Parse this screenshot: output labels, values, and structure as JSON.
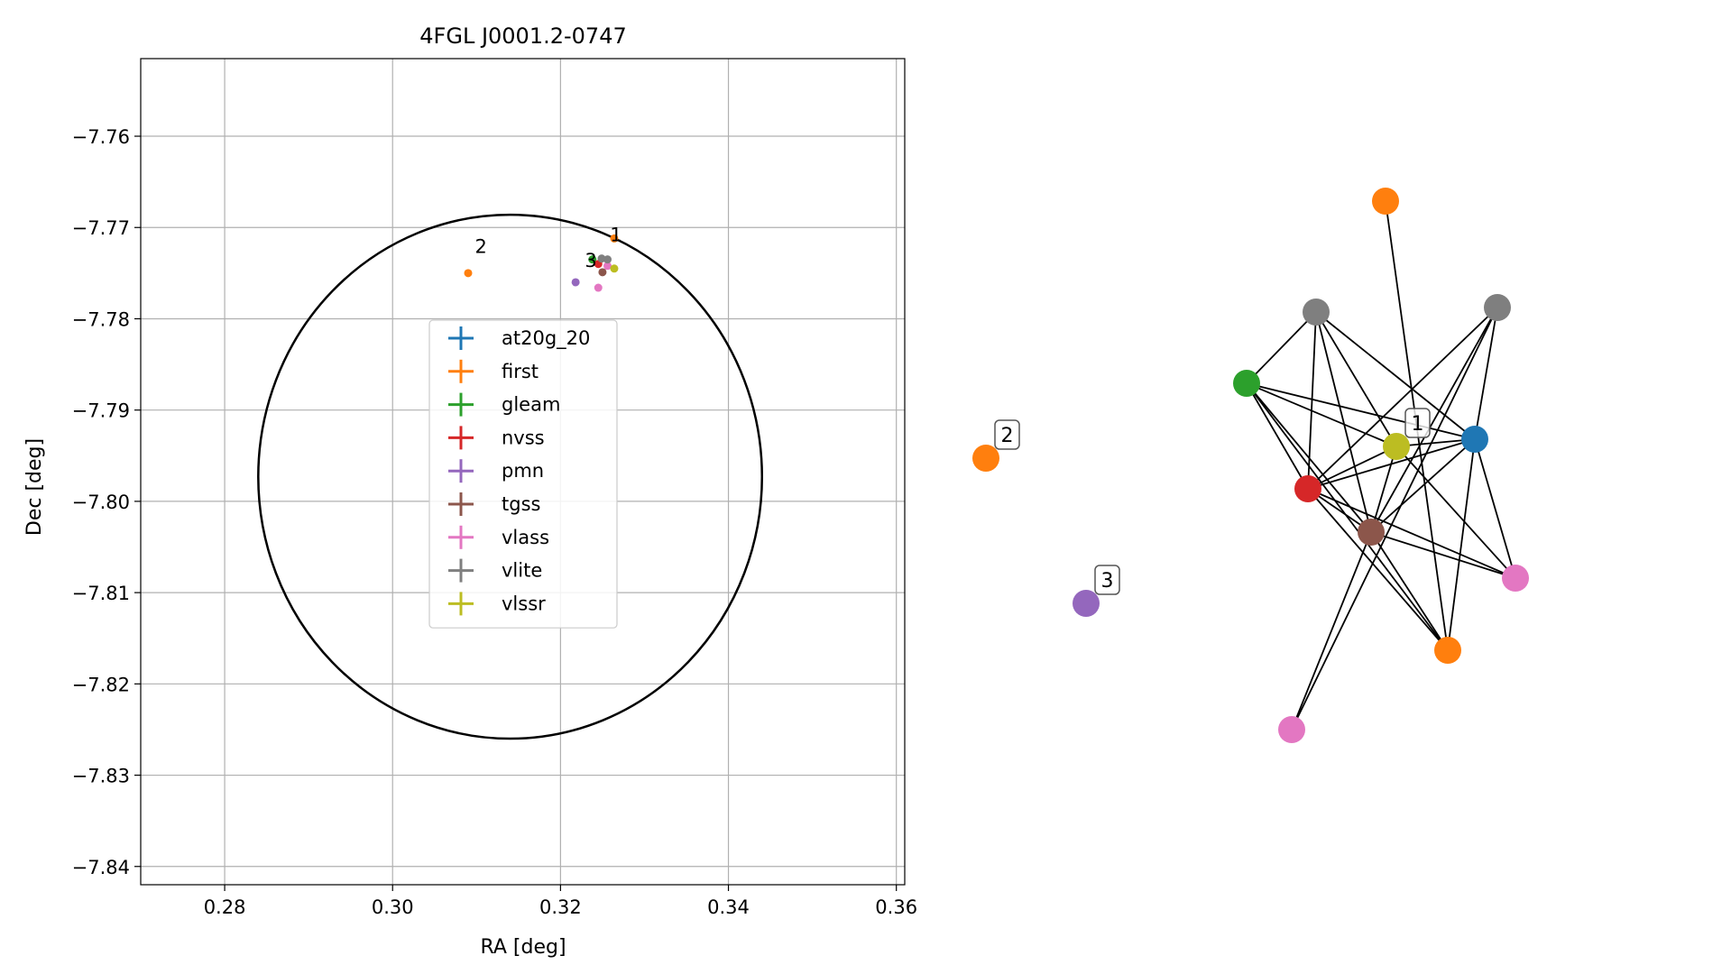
{
  "chart_data": [
    {
      "type": "scatter",
      "title": "4FGL J0001.2-0747",
      "xlabel": "RA [deg]",
      "ylabel": "Dec [deg]",
      "xlim": [
        0.27,
        0.361
      ],
      "ylim": [
        -7.842,
        -7.7515
      ],
      "xticks": [
        0.28,
        0.3,
        0.32,
        0.34,
        0.36
      ],
      "xtick_labels": [
        "0.28",
        "0.30",
        "0.32",
        "0.34",
        "0.36"
      ],
      "yticks": [
        -7.76,
        -7.77,
        -7.78,
        -7.79,
        -7.8,
        -7.81,
        -7.82,
        -7.83,
        -7.84
      ],
      "ytick_labels": [
        "−7.76",
        "−7.77",
        "−7.78",
        "−7.79",
        "−7.80",
        "−7.81",
        "−7.82",
        "−7.83",
        "−7.84"
      ],
      "grid": true,
      "legend_position": "center",
      "ellipse": {
        "center": [
          0.314,
          -7.7973
        ],
        "radius_ra": 0.03,
        "radius_dec": 0.0287,
        "color": "#000000"
      },
      "series": [
        {
          "name": "at20g_20",
          "color": "#1f77b4",
          "points": []
        },
        {
          "name": "first",
          "color": "#ff7f0e",
          "points": [
            [
              0.3264,
              -7.7712
            ],
            [
              0.309,
              -7.775
            ]
          ]
        },
        {
          "name": "gleam",
          "color": "#2ca02c",
          "points": [
            [
              0.3238,
              -7.7735
            ]
          ]
        },
        {
          "name": "nvss",
          "color": "#d62728",
          "points": [
            [
              0.3245,
              -7.774
            ]
          ]
        },
        {
          "name": "pmn",
          "color": "#9467bd",
          "points": [
            [
              0.3218,
              -7.776
            ]
          ]
        },
        {
          "name": "tgss",
          "color": "#8c564b",
          "points": [
            [
              0.325,
              -7.7749
            ]
          ]
        },
        {
          "name": "vlass",
          "color": "#e377c2",
          "points": [
            [
              0.3245,
              -7.7766
            ],
            [
              0.3256,
              -7.7742
            ]
          ]
        },
        {
          "name": "vlite",
          "color": "#7f7f7f",
          "points": [
            [
              0.3249,
              -7.7734
            ],
            [
              0.3256,
              -7.7735
            ]
          ]
        },
        {
          "name": "vlssr",
          "color": "#bcbd22",
          "points": [
            [
              0.3264,
              -7.7745
            ]
          ]
        }
      ],
      "annotations": [
        {
          "text": "1",
          "x": 0.3259,
          "y": -7.7715
        },
        {
          "text": "2",
          "x": 0.3098,
          "y": -7.7728
        },
        {
          "text": "3",
          "x": 0.3229,
          "y": -7.7743
        }
      ]
    },
    {
      "type": "network",
      "nodes": [
        {
          "id": "first_top",
          "color": "#ff7f0e"
        },
        {
          "id": "vlite_left",
          "color": "#7f7f7f"
        },
        {
          "id": "vlite_right",
          "color": "#7f7f7f"
        },
        {
          "id": "gleam",
          "color": "#2ca02c"
        },
        {
          "id": "vlssr",
          "color": "#bcbd22"
        },
        {
          "id": "at20g",
          "color": "#1f77b4"
        },
        {
          "id": "nvss",
          "color": "#d62728"
        },
        {
          "id": "tgss",
          "color": "#8c564b"
        },
        {
          "id": "vlass_right",
          "color": "#e377c2"
        },
        {
          "id": "first_bot",
          "color": "#ff7f0e"
        },
        {
          "id": "vlass_bot",
          "color": "#e377c2"
        },
        {
          "id": "first_iso",
          "color": "#ff7f0e"
        },
        {
          "id": "pmn_iso",
          "color": "#9467bd"
        }
      ],
      "edges": [
        [
          "first_top",
          "first_bot"
        ],
        [
          "vlite_left",
          "gleam"
        ],
        [
          "vlite_left",
          "nvss"
        ],
        [
          "vlite_left",
          "tgss"
        ],
        [
          "vlite_left",
          "vlssr"
        ],
        [
          "vlite_left",
          "at20g"
        ],
        [
          "vlite_right",
          "at20g"
        ],
        [
          "vlite_right",
          "tgss"
        ],
        [
          "vlite_right",
          "nvss"
        ],
        [
          "vlite_right",
          "vlass_bot"
        ],
        [
          "gleam",
          "nvss"
        ],
        [
          "gleam",
          "at20g"
        ],
        [
          "gleam",
          "tgss"
        ],
        [
          "gleam",
          "vlssr"
        ],
        [
          "gleam",
          "first_bot"
        ],
        [
          "vlssr",
          "at20g"
        ],
        [
          "vlssr",
          "nvss"
        ],
        [
          "vlssr",
          "tgss"
        ],
        [
          "vlssr",
          "vlass_right"
        ],
        [
          "at20g",
          "nvss"
        ],
        [
          "at20g",
          "tgss"
        ],
        [
          "at20g",
          "first_bot"
        ],
        [
          "at20g",
          "vlass_right"
        ],
        [
          "nvss",
          "tgss"
        ],
        [
          "nvss",
          "vlass_right"
        ],
        [
          "nvss",
          "first_bot"
        ],
        [
          "tgss",
          "vlass_right"
        ],
        [
          "tgss",
          "first_bot"
        ],
        [
          "tgss",
          "vlass_bot"
        ]
      ],
      "labels": [
        {
          "text": "1",
          "node": "vlssr"
        },
        {
          "text": "2",
          "node": "first_iso"
        },
        {
          "text": "3",
          "node": "pmn_iso"
        }
      ]
    }
  ]
}
